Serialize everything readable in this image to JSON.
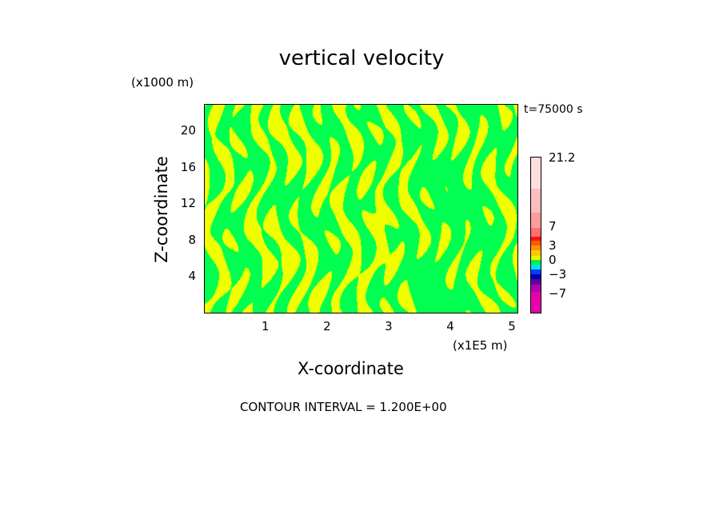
{
  "chart_data": {
    "type": "heatmap",
    "title": "vertical velocity",
    "xlabel": "X-coordinate",
    "ylabel": "Z-coordinate",
    "x_unit": "(x1E5 m)",
    "y_unit": "(x1000 m)",
    "time_label": "t=75000 s",
    "footer": "CONTOUR INTERVAL = 1.200E+00",
    "xlim": [
      0,
      5.1
    ],
    "ylim": [
      0,
      23
    ],
    "x_ticks": [
      "1",
      "2",
      "3",
      "4",
      "5"
    ],
    "y_ticks": [
      "4",
      "8",
      "12",
      "16",
      "20"
    ],
    "colorbar": {
      "labels": [
        "21.2",
        "7",
        "3",
        "0",
        "−3",
        "−7"
      ],
      "colors": [
        "#ffdede",
        "#ffbcbc",
        "#ff9c9c",
        "#ff7070",
        "#ff1010",
        "#ff5a00",
        "#ff9400",
        "#ffc800",
        "#f0f000",
        "#00f050",
        "#00e0f0",
        "#0040ff",
        "#0000b0",
        "#6000a0",
        "#b000b0",
        "#e800a8"
      ]
    },
    "dominant_colors": {
      "positive_small": "#f0ff00",
      "near_zero": "#00ff50"
    }
  }
}
